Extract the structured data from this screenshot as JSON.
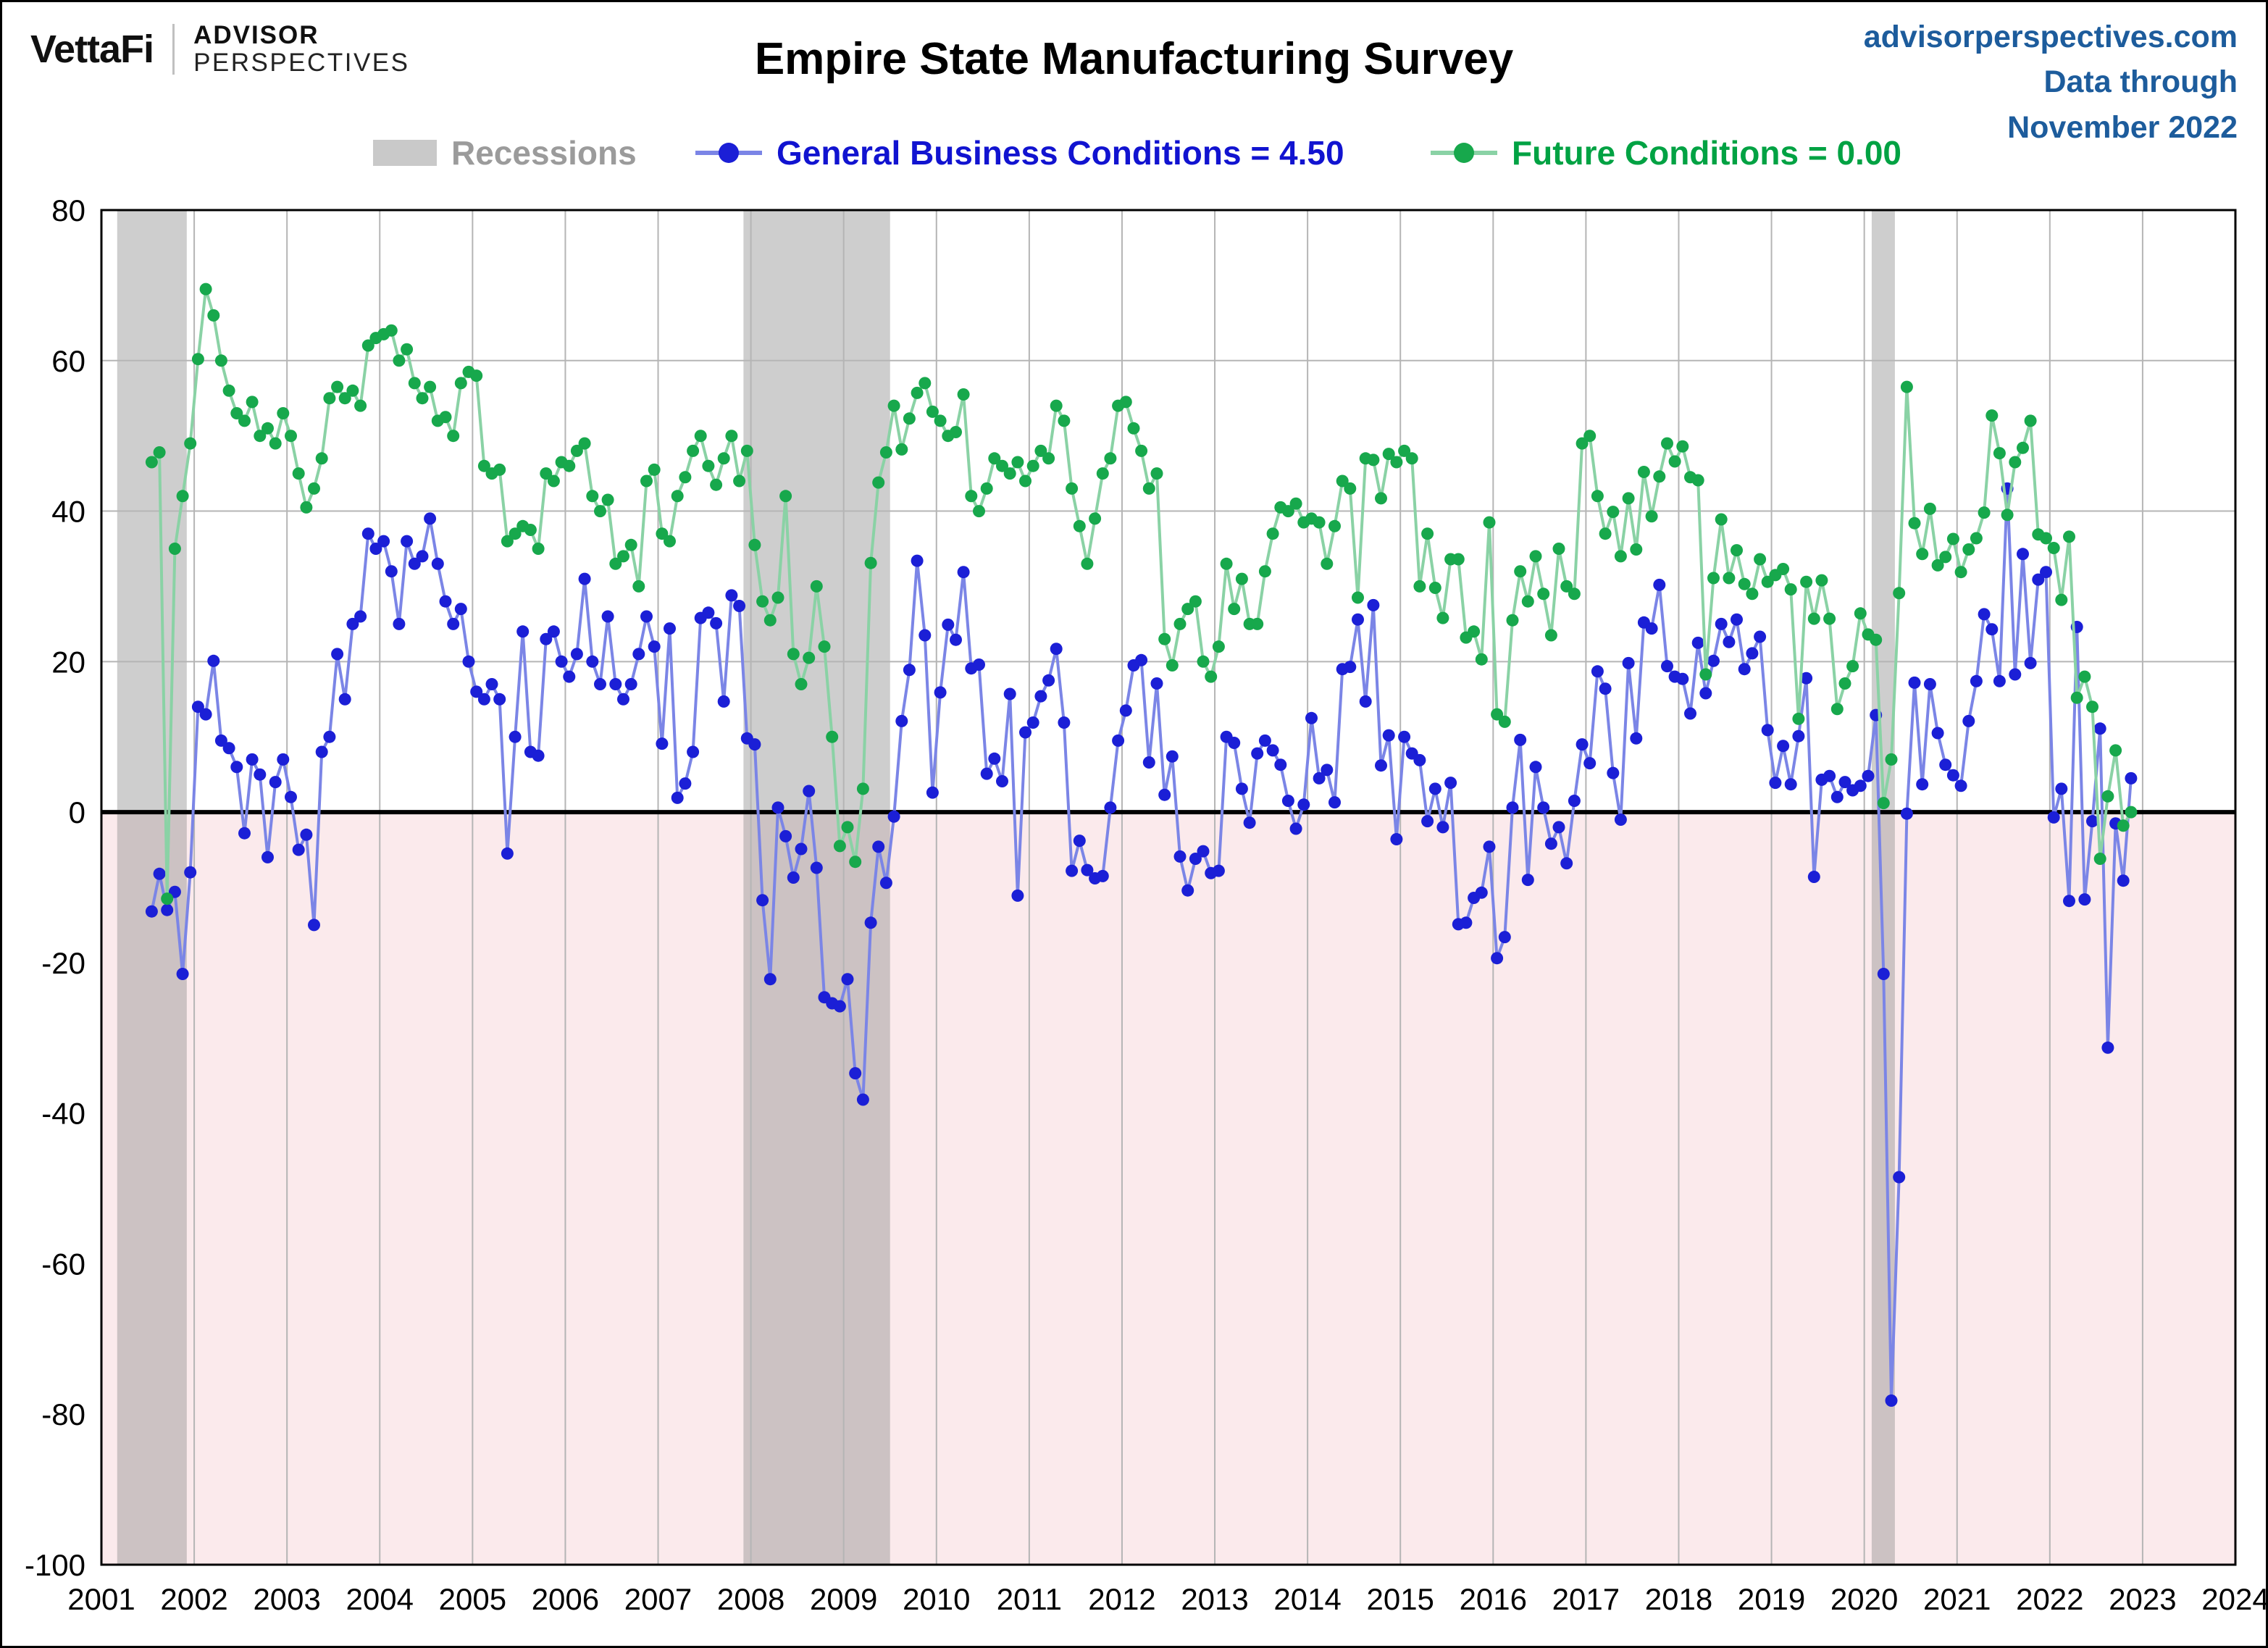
{
  "header": {
    "brand": {
      "vettafi": "VettaFi",
      "advisor": "ADVISOR",
      "perspectives": "PERSPECTIVES"
    },
    "title": "Empire State Manufacturing Survey",
    "source": {
      "site": "advisorperspectives.com",
      "line2": "Data through",
      "line3": "November 2022"
    }
  },
  "legend": {
    "recessions_label": "Recessions",
    "series1_label": "General Business Conditions = 4.50",
    "series2_label": "Future Conditions = 0.00"
  },
  "colors": {
    "title_text": "#000000",
    "source_blue": "#1d5c9c",
    "gbc_marker": "#1b1fd6",
    "gbc_line": "#7b85e6",
    "gbc_text": "#1113d0",
    "future_marker": "#17a84c",
    "future_line": "#8ad2a5",
    "future_text": "#00a243",
    "recession_swatch": "#c9c9c9",
    "recession_band": "#8a8a8a",
    "recession_label": "#9b9b9b",
    "below_zero_pink": "#fbeaec",
    "grid": "#b5b5b5",
    "axis": "#000000"
  },
  "chart_data": {
    "type": "line",
    "title": "Empire State Manufacturing Survey",
    "frequency": "monthly",
    "x_start": "2001-07",
    "x_end": "2022-11",
    "x_axis": {
      "min": 2001,
      "max": 2024,
      "ticks": [
        2001,
        2002,
        2003,
        2004,
        2005,
        2006,
        2007,
        2008,
        2009,
        2010,
        2011,
        2012,
        2013,
        2014,
        2015,
        2016,
        2017,
        2018,
        2019,
        2020,
        2021,
        2022,
        2023,
        2024
      ]
    },
    "y_axis": {
      "min": -100,
      "max": 80,
      "tick_interval": 20,
      "ticks": [
        80,
        60,
        40,
        20,
        0,
        -20,
        -40,
        -60,
        -80,
        -100
      ]
    },
    "grid": true,
    "legend_position": "top",
    "recessions": [
      {
        "start": 2001.17,
        "end": 2001.92
      },
      {
        "start": 2007.92,
        "end": 2009.5
      },
      {
        "start": 2020.08,
        "end": 2020.33
      }
    ],
    "series": [
      {
        "name": "General Business Conditions",
        "latest": 4.5,
        "marker_color": "#1b1fd6",
        "line_color": "#7b85e6",
        "values": [
          -13.2,
          -8.2,
          -13.0,
          -10.6,
          -21.5,
          -8.0,
          14.0,
          13.0,
          20.1,
          9.5,
          8.5,
          6.0,
          -2.8,
          7.0,
          5.0,
          -6.0,
          4.0,
          7.0,
          2.0,
          -5.0,
          -3.0,
          -15.0,
          8.0,
          10.0,
          21.0,
          15.0,
          25.0,
          26.0,
          37.0,
          35.0,
          36.0,
          32.0,
          25.0,
          36.0,
          33.0,
          34.0,
          39.0,
          33.0,
          28.0,
          25.0,
          27.0,
          20.0,
          16.0,
          15.0,
          17.0,
          15.0,
          -5.5,
          10.0,
          24.0,
          8.0,
          7.5,
          23.0,
          24.0,
          20.0,
          18.0,
          21.0,
          31.0,
          20.0,
          17.0,
          26.0,
          17.0,
          15.0,
          17.0,
          21.0,
          26.0,
          22.0,
          9.1,
          24.4,
          1.9,
          3.8,
          8.0,
          25.8,
          26.5,
          25.1,
          14.7,
          28.8,
          27.4,
          9.8,
          9.0,
          -11.7,
          -22.2,
          0.6,
          -3.2,
          -8.7,
          -4.9,
          2.8,
          -7.4,
          -24.6,
          -25.4,
          -25.8,
          -22.2,
          -34.7,
          -38.2,
          -14.7,
          -4.6,
          -9.4,
          -0.6,
          12.1,
          18.9,
          33.4,
          23.5,
          2.6,
          15.9,
          24.9,
          22.9,
          31.9,
          19.1,
          19.6,
          5.1,
          7.1,
          4.1,
          15.7,
          -11.1,
          10.6,
          11.9,
          15.4,
          17.5,
          21.7,
          11.9,
          -7.8,
          -3.8,
          -7.7,
          -8.8,
          -8.5,
          0.6,
          9.5,
          13.5,
          19.5,
          20.2,
          6.6,
          17.1,
          2.3,
          7.4,
          -5.9,
          -10.4,
          -6.2,
          -5.2,
          -8.1,
          -7.8,
          10.0,
          9.2,
          3.1,
          -1.4,
          7.8,
          9.5,
          8.2,
          6.3,
          1.5,
          -2.2,
          1.0,
          12.5,
          4.5,
          5.6,
          1.3,
          19.0,
          19.3,
          25.6,
          14.7,
          27.5,
          6.2,
          10.2,
          -3.6,
          10.0,
          7.8,
          6.9,
          -1.2,
          3.1,
          -2.0,
          3.9,
          -14.9,
          -14.7,
          -11.4,
          -10.7,
          -4.6,
          -19.4,
          -16.6,
          0.6,
          9.6,
          -9.0,
          6.0,
          0.6,
          -4.2,
          -2.0,
          -6.8,
          1.5,
          9.0,
          6.5,
          18.7,
          16.4,
          5.2,
          -1.0,
          19.8,
          9.8,
          25.2,
          24.4,
          30.2,
          19.4,
          18.0,
          17.7,
          13.1,
          22.5,
          15.8,
          20.1,
          25.0,
          22.6,
          25.6,
          19.0,
          21.1,
          23.3,
          10.9,
          3.9,
          8.8,
          3.7,
          10.1,
          17.8,
          -8.6,
          4.3,
          4.8,
          2.0,
          4.0,
          2.9,
          3.5,
          4.8,
          12.9,
          -21.5,
          -78.2,
          -48.5,
          -0.2,
          17.2,
          3.7,
          17.0,
          10.5,
          6.3,
          4.9,
          3.5,
          12.1,
          17.4,
          26.3,
          24.3,
          17.4,
          43.0,
          18.3,
          34.3,
          19.8,
          30.9,
          31.9,
          -0.7,
          3.1,
          -11.8,
          24.6,
          -11.6,
          -1.2,
          11.1,
          -31.3,
          -1.5,
          -9.1,
          4.5
        ]
      },
      {
        "name": "Future Conditions",
        "latest": 0.0,
        "marker_color": "#17a84c",
        "line_color": "#8ad2a5",
        "values": [
          46.5,
          47.8,
          -11.5,
          35.0,
          42.0,
          49.0,
          60.2,
          69.5,
          66.0,
          60.0,
          56.0,
          53.0,
          52.0,
          54.5,
          50.0,
          51.0,
          49.0,
          53.0,
          50.0,
          45.0,
          40.5,
          43.0,
          47.0,
          55.0,
          56.5,
          55.0,
          56.0,
          54.0,
          62.0,
          63.0,
          63.5,
          64.0,
          60.0,
          61.5,
          57.0,
          55.0,
          56.5,
          52.0,
          52.5,
          50.0,
          57.0,
          58.5,
          58.0,
          46.0,
          45.0,
          45.5,
          36.0,
          37.0,
          38.0,
          37.5,
          35.0,
          45.0,
          44.0,
          46.5,
          46.0,
          48.0,
          49.0,
          42.0,
          40.0,
          41.5,
          33.0,
          34.0,
          35.5,
          30.0,
          44.0,
          45.5,
          37.0,
          36.0,
          42.0,
          44.5,
          48.0,
          50.0,
          46.0,
          43.5,
          47.0,
          50.0,
          44.0,
          48.0,
          35.5,
          28.0,
          25.5,
          28.5,
          42.0,
          21.0,
          17.0,
          20.5,
          30.0,
          22.0,
          10.0,
          -4.5,
          -2.0,
          -6.6,
          3.1,
          33.1,
          43.8,
          47.8,
          54.0,
          48.2,
          52.3,
          55.7,
          57.0,
          53.2,
          52.0,
          50.0,
          50.5,
          55.5,
          42.0,
          40.0,
          43.0,
          47.0,
          46.0,
          45.0,
          46.5,
          44.0,
          46.0,
          48.0,
          47.0,
          54.0,
          52.0,
          43.0,
          38.0,
          33.0,
          39.0,
          45.0,
          47.0,
          54.0,
          54.5,
          51.0,
          48.0,
          43.0,
          45.0,
          23.0,
          19.5,
          25.0,
          27.0,
          28.0,
          20.0,
          18.0,
          22.0,
          33.0,
          27.0,
          31.0,
          25.0,
          25.0,
          32.0,
          37.0,
          40.5,
          40.0,
          41.0,
          38.5,
          39.0,
          38.5,
          33.0,
          38.0,
          44.0,
          43.0,
          28.5,
          47.0,
          46.8,
          41.7,
          47.6,
          46.5,
          48.0,
          47.0,
          30.0,
          37.0,
          29.8,
          25.8,
          33.6,
          33.6,
          23.2,
          24.0,
          20.3,
          38.5,
          13.0,
          12.0,
          25.5,
          32.0,
          28.0,
          34.0,
          29.0,
          23.5,
          35.0,
          30.0,
          29.0,
          49.0,
          50.0,
          42.0,
          37.0,
          39.9,
          34.0,
          41.7,
          34.9,
          45.2,
          39.3,
          44.6,
          49.0,
          46.6,
          48.6,
          44.5,
          44.1,
          18.3,
          31.1,
          38.9,
          31.1,
          34.8,
          30.3,
          29.0,
          33.6,
          30.6,
          31.5,
          32.3,
          29.6,
          12.4,
          30.6,
          25.7,
          30.8,
          25.7,
          13.7,
          17.1,
          19.4,
          26.4,
          23.6,
          22.9,
          1.2,
          7.0,
          29.1,
          56.5,
          38.4,
          34.3,
          40.3,
          32.8,
          33.9,
          36.3,
          31.9,
          34.9,
          36.4,
          39.8,
          52.7,
          47.7,
          39.5,
          46.5,
          48.4,
          52.0,
          36.9,
          36.4,
          35.1,
          28.2,
          36.6,
          15.2,
          18.0,
          14.0,
          -6.2,
          2.1,
          8.2,
          -1.8,
          0.0
        ]
      }
    ]
  }
}
